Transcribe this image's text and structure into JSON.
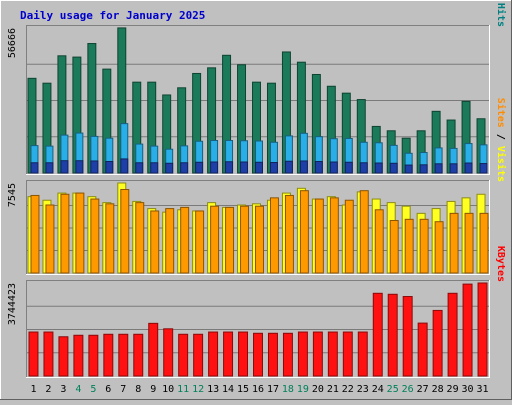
{
  "chart_data": {
    "type": "bar",
    "title": "Daily usage for January 2025",
    "categories": [
      "1",
      "2",
      "3",
      "4",
      "5",
      "6",
      "7",
      "8",
      "9",
      "10",
      "11",
      "12",
      "13",
      "14",
      "15",
      "16",
      "17",
      "18",
      "19",
      "20",
      "21",
      "22",
      "23",
      "24",
      "25",
      "26",
      "27",
      "28",
      "29",
      "30",
      "31"
    ],
    "weekend_days": [
      "4",
      "5",
      "11",
      "12",
      "18",
      "19",
      "25",
      "26"
    ],
    "panels": [
      {
        "name": "hits-files-pages",
        "ymax_label": "56666",
        "ymax": 56666,
        "side_labels": [
          {
            "text": "Hits",
            "color": "#008080"
          },
          {
            "text": " / ",
            "color": "#000000"
          },
          {
            "text": "Files",
            "color": "#0000ff"
          },
          {
            "text": " / ",
            "color": "#000000"
          },
          {
            "text": "Pages",
            "color": "#00aaff"
          }
        ],
        "series": [
          {
            "name": "Hits",
            "color": "#1b7a5a",
            "values": [
              37000,
              35100,
              45800,
              45300,
              50600,
              40600,
              56700,
              35500,
              35500,
              30500,
              33300,
              38900,
              41100,
              46000,
              42300,
              35500,
              35100,
              47300,
              43300,
              38500,
              33900,
              31200,
              28700,
              18200,
              16500,
              13600,
              16500,
              24100,
              20700,
              28000,
              21200
            ]
          },
          {
            "name": "Files",
            "color": "#29aee8",
            "values": [
              10700,
              10500,
              14800,
              15600,
              14300,
              13600,
              19300,
              11300,
              10500,
              9300,
              10600,
              12400,
              12700,
              12700,
              12600,
              12500,
              12000,
              14500,
              15500,
              14200,
              13400,
              13500,
              12000,
              11800,
              10800,
              7700,
              8000,
              9800,
              9600,
              11500,
              11000
            ]
          },
          {
            "name": "Pages",
            "color": "#1f3fa8",
            "values": [
              4000,
              4000,
              4800,
              4800,
              4700,
              4500,
              5500,
              4000,
              4000,
              3800,
              4000,
              4200,
              4300,
              4400,
              4300,
              4200,
              4100,
              4600,
              4700,
              4500,
              4300,
              4200,
              4000,
              3900,
              3800,
              3100,
              3200,
              3600,
              3600,
              3900,
              3700
            ]
          }
        ]
      },
      {
        "name": "visits-sites",
        "ymax_label": "7545",
        "ymax": 7545,
        "side_labels": [
          {
            "text": "Visits",
            "color": "#ffff00"
          },
          {
            "text": " / ",
            "color": "#000000"
          },
          {
            "text": "Sites",
            "color": "#ff8c00"
          }
        ],
        "series": [
          {
            "name": "Visits",
            "color": "#ffff22",
            "values": [
              6400,
              6100,
              6700,
              6700,
              6400,
              5900,
              7545,
              6000,
              5400,
              5100,
              5300,
              5200,
              5900,
              5500,
              5700,
              5800,
              6100,
              6700,
              7100,
              6200,
              6400,
              5700,
              6800,
              6200,
              5900,
              5600,
              5000,
              5400,
              6000,
              6300,
              6600
            ]
          },
          {
            "name": "Sites",
            "color": "#ff9900",
            "values": [
              6500,
              5700,
              6600,
              6700,
              6200,
              5800,
              7000,
              5900,
              5200,
              5400,
              5500,
              5200,
              5600,
              5500,
              5600,
              5600,
              6300,
              6500,
              6900,
              6200,
              6300,
              6100,
              6900,
              5300,
              4400,
              4500,
              4500,
              4300,
              5000,
              5000,
              5000
            ]
          }
        ]
      },
      {
        "name": "kbytes",
        "ymax_label": "3744423",
        "ymax": 3744423,
        "side_labels": [
          {
            "text": "KBytes",
            "color": "#ff0000"
          }
        ],
        "series": [
          {
            "name": "KBytes",
            "color": "#ff1111",
            "values": [
              1770000,
              1770000,
              1580000,
              1640000,
              1640000,
              1680000,
              1680000,
              1680000,
              2120000,
              1900000,
              1680000,
              1680000,
              1770000,
              1770000,
              1770000,
              1720000,
              1720000,
              1720000,
              1770000,
              1770000,
              1770000,
              1770000,
              1770000,
              3330000,
              3290000,
              3200000,
              2130000,
              2640000,
              3330000,
              3700000,
              3744423
            ]
          }
        ]
      }
    ],
    "colors": {
      "title": "#0000cc",
      "weekday_label": "#000000",
      "weekend_label": "#00805a",
      "panel_bg": "#c0c0c0",
      "grid": "#7a7a7a"
    }
  }
}
